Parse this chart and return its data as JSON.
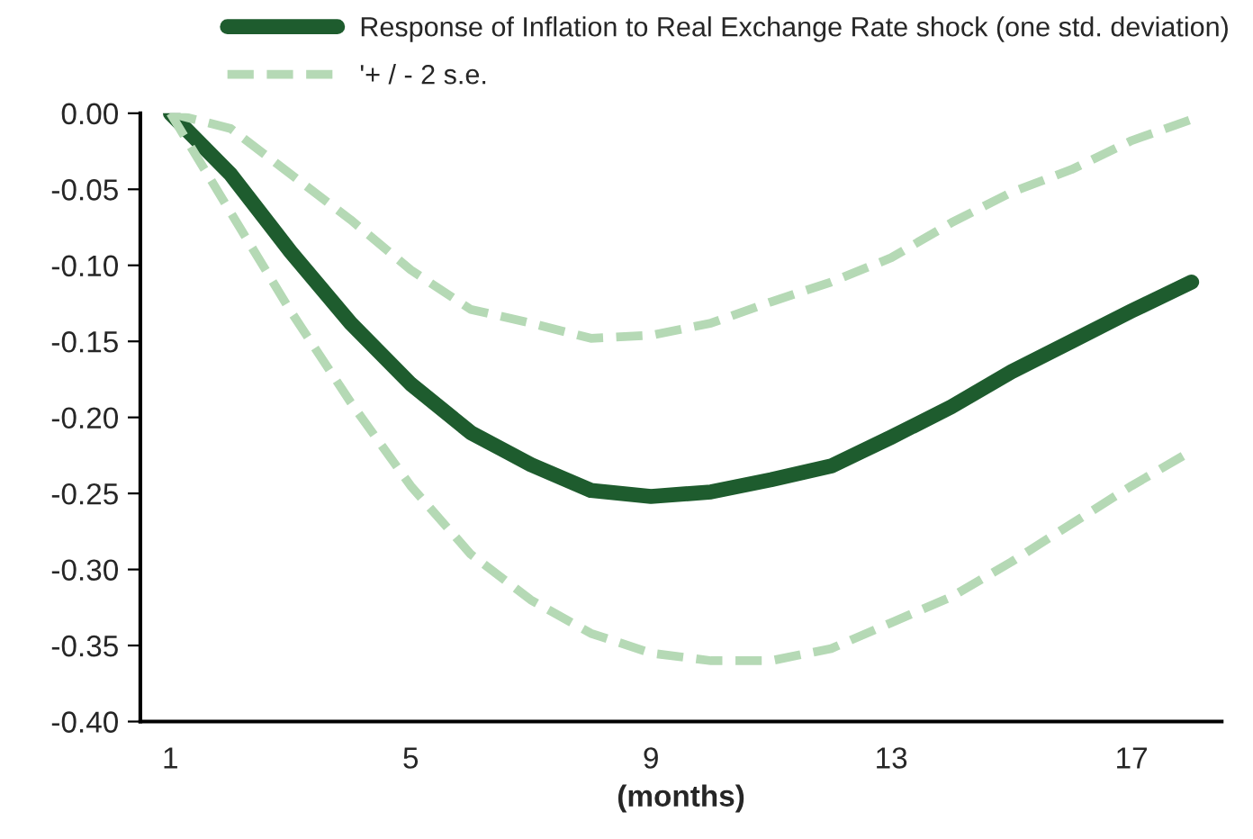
{
  "chart_data": {
    "type": "line",
    "xlabel": "(months)",
    "x": [
      1,
      2,
      3,
      4,
      5,
      6,
      7,
      8,
      9,
      10,
      11,
      12,
      13,
      14,
      15,
      16,
      17,
      18
    ],
    "series": [
      {
        "name": "Response of Inflation to Real Exchange Rate shock (one std. deviation)",
        "color": "#1e5c2e",
        "line_style": "solid",
        "values": [
          0,
          -0.04,
          -0.091,
          -0.138,
          -0.178,
          -0.21,
          -0.231,
          -0.248,
          -0.252,
          -0.249,
          -0.241,
          -0.232,
          -0.213,
          -0.193,
          -0.17,
          -0.15,
          -0.13,
          -0.111
        ]
      },
      {
        "name": "'+ / - 2 s.e.",
        "color": "#b5d9b5",
        "line_style": "dashed",
        "values": [
          0,
          -0.01,
          -0.04,
          -0.07,
          -0.103,
          -0.129,
          -0.138,
          -0.148,
          -0.146,
          -0.138,
          -0.124,
          -0.111,
          -0.095,
          -0.072,
          -0.052,
          -0.037,
          -0.018,
          -0.004
        ]
      },
      {
        "color": "#b5d9b5",
        "line_style": "dashed",
        "values": [
          0,
          -0.065,
          -0.13,
          -0.19,
          -0.245,
          -0.29,
          -0.32,
          -0.342,
          -0.355,
          -0.36,
          -0.36,
          -0.352,
          -0.335,
          -0.318,
          -0.295,
          -0.27,
          -0.245,
          -0.222
        ]
      }
    ],
    "xlim": [
      0.5,
      18.5
    ],
    "xticks": [
      1,
      5,
      9,
      13,
      17
    ],
    "ylim": [
      -0.4,
      0.0
    ],
    "yticks": [
      {
        "value": -0.4,
        "label": "-0.40"
      },
      {
        "value": -0.35,
        "label": "-0.35"
      },
      {
        "value": -0.3,
        "label": "-0.30"
      },
      {
        "value": -0.25,
        "label": "-0.25"
      },
      {
        "value": -0.2,
        "label": "-0.20"
      },
      {
        "value": -0.15,
        "label": "-0.15"
      },
      {
        "value": -0.1,
        "label": "-0.10"
      },
      {
        "value": -0.05,
        "label": "-0.05"
      },
      {
        "value": 0.0,
        "label": "0.00"
      }
    ],
    "grid": false,
    "legend": "top right"
  }
}
